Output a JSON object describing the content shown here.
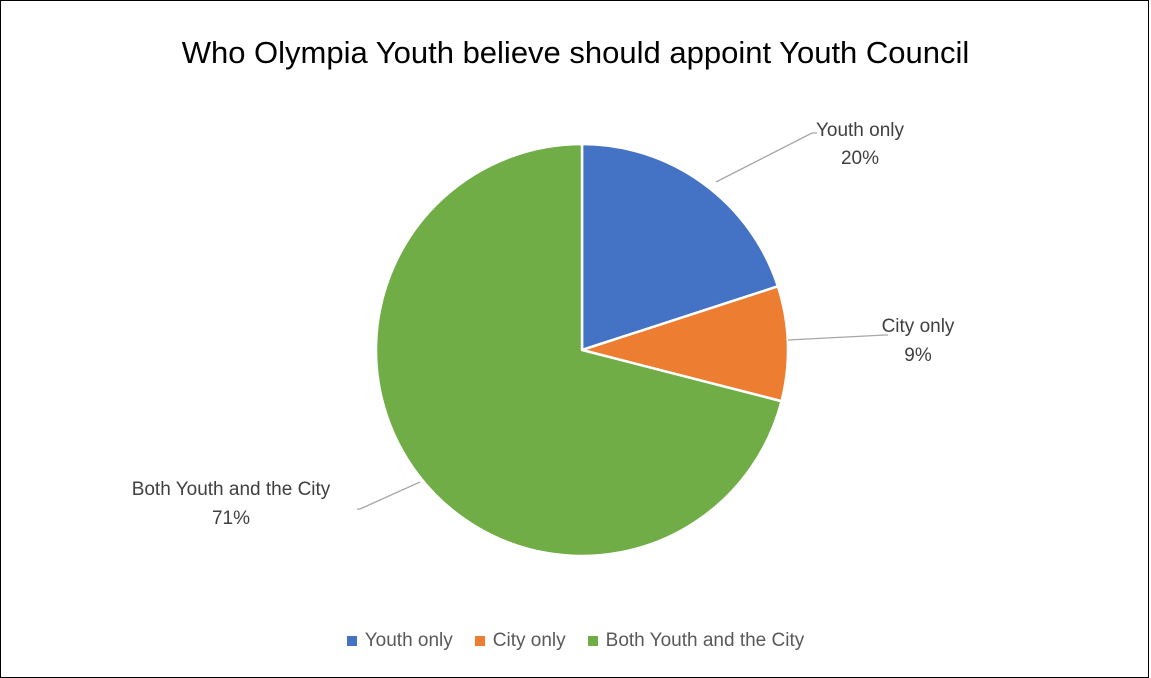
{
  "chart_data": {
    "type": "pie",
    "title": "Who Olympia Youth believe should appoint Youth Council",
    "slices": [
      {
        "label": "Youth only",
        "percent_label": "20%",
        "value": 20,
        "color": "#4472C4"
      },
      {
        "label": "City only",
        "percent_label": "9%",
        "value": 9,
        "color": "#ED7D31"
      },
      {
        "label": "Both Youth and the City",
        "percent_label": "71%",
        "value": 71,
        "color": "#70AD47"
      }
    ],
    "legend": {
      "position": "bottom",
      "entries": [
        "Youth only",
        "City only",
        "Both Youth and the City"
      ]
    },
    "data_labels": "outside with leader lines"
  }
}
